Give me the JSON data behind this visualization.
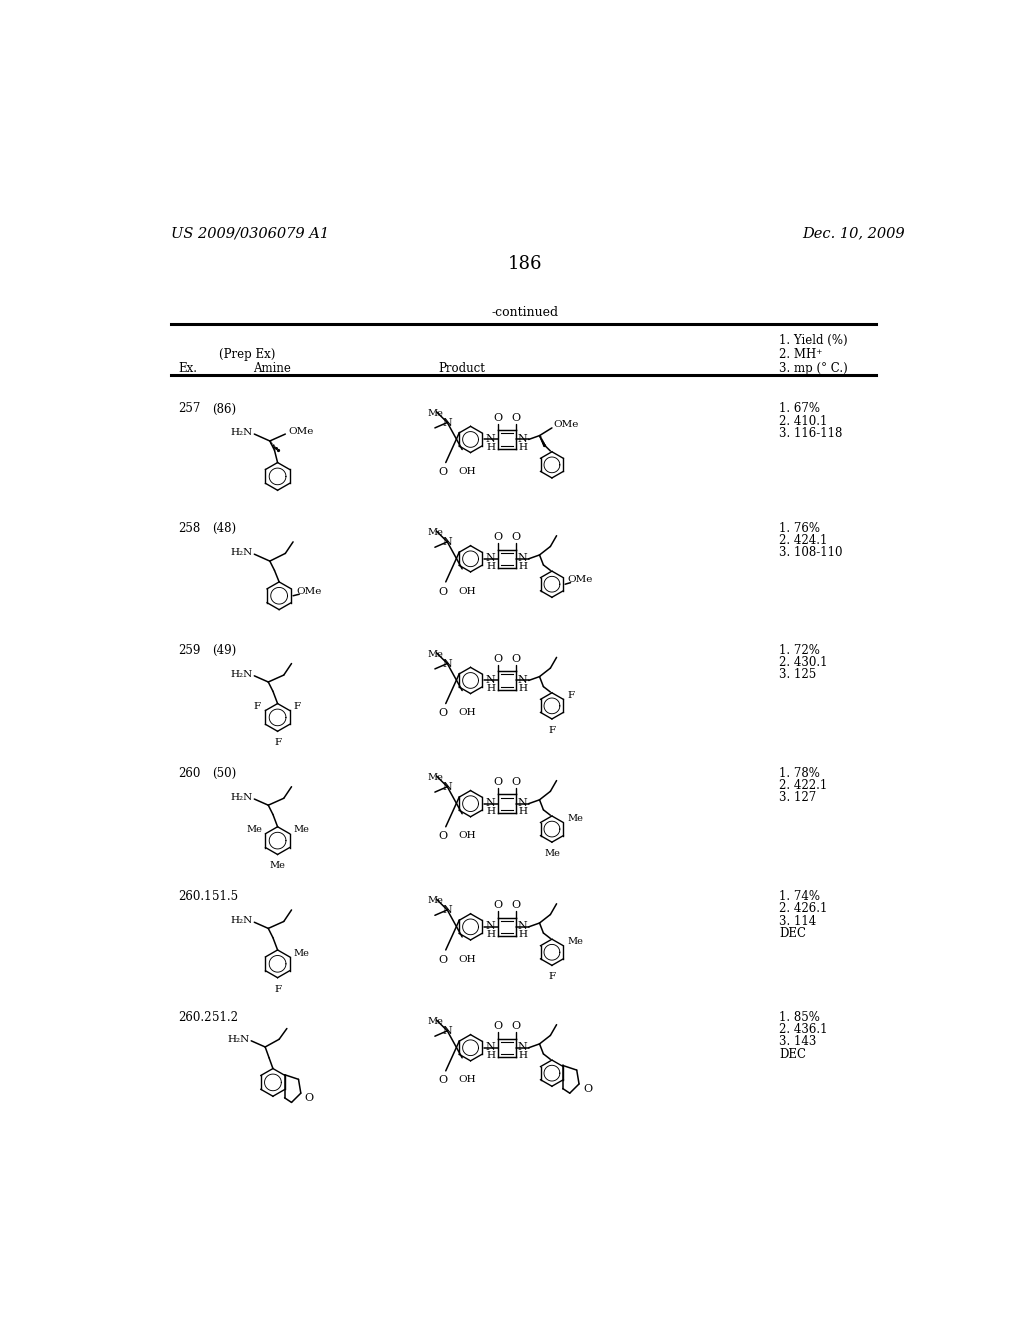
{
  "page_number": "186",
  "patent_number": "US 2009/0306079 A1",
  "patent_date": "Dec. 10, 2009",
  "continued_label": "-continued",
  "rows": [
    {
      "ex": "257",
      "prep_ex": "(86)",
      "data": "1. 67%\n2. 410.1\n3. 116-118"
    },
    {
      "ex": "258",
      "prep_ex": "(48)",
      "data": "1. 76%\n2. 424.1\n3. 108-110"
    },
    {
      "ex": "259",
      "prep_ex": "(49)",
      "data": "1. 72%\n2. 430.1\n3. 125"
    },
    {
      "ex": "260",
      "prep_ex": "(50)",
      "data": "1. 78%\n2. 422.1\n3. 127"
    },
    {
      "ex": "260.1",
      "prep_ex": "51.5",
      "data": "1. 74%\n2. 426.1\n3. 114\nDEC"
    },
    {
      "ex": "260.2",
      "prep_ex": "51.2",
      "data": "1. 85%\n2. 436.1\n3. 143\nDEC"
    }
  ]
}
